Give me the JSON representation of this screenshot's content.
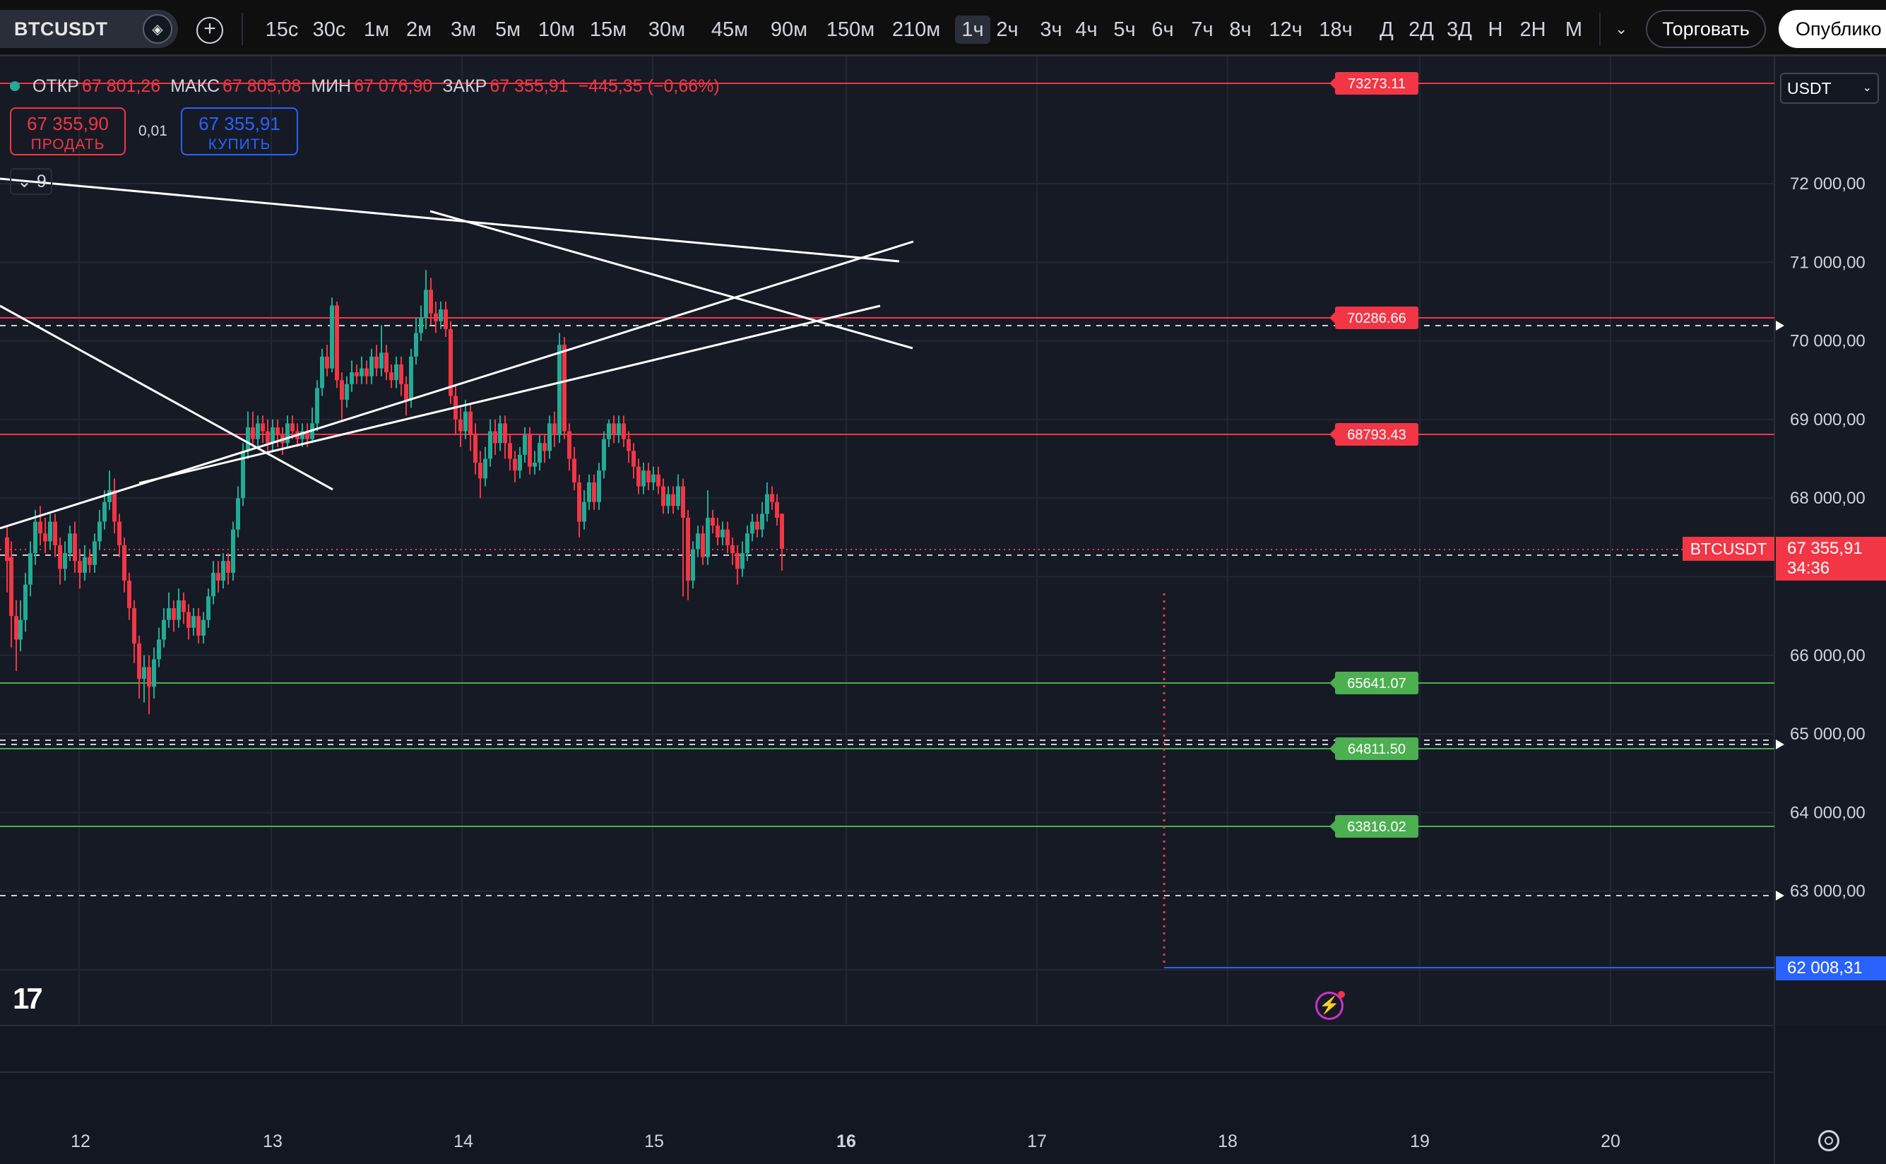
{
  "toolbar": {
    "symbol": "BTCUSDT",
    "timeframes": [
      "15с",
      "30с",
      "1м",
      "2м",
      "3м",
      "5м",
      "10м",
      "15м",
      "30м",
      "45м",
      "90м",
      "150м",
      "210м",
      "1ч",
      "2ч",
      "3ч",
      "4ч",
      "5ч",
      "6ч",
      "7ч",
      "8ч",
      "12ч",
      "18ч",
      "Д",
      "2Д",
      "3Д",
      "Н",
      "2Н",
      "М"
    ],
    "active_timeframe": "1ч",
    "trade_button": "Торговать",
    "publish_button": "Опублико"
  },
  "legend": {
    "open_label": "ОТКР",
    "open": "67 801,26",
    "high_label": "МАКС",
    "high": "67 805,08",
    "low_label": "МИН",
    "low": "67 076,90",
    "close_label": "ЗАКР",
    "close": "67 355,91",
    "change": "−445,35 (−0,66%)"
  },
  "trade": {
    "sell_price": "67 355,90",
    "sell_label": "ПРОДАТЬ",
    "spread": "0,01",
    "buy_price": "67 355,91",
    "buy_label": "КУПИТЬ"
  },
  "indicators_count": "9",
  "currency": "USDT",
  "price_scale": {
    "ticks": [
      "72 000,00",
      "71 000,00",
      "70 000,00",
      "69 000,00",
      "68 000,00",
      "66 000,00",
      "65 000,00",
      "64 000,00",
      "63 000,00"
    ],
    "current_symbol": "BTCUSDT",
    "current_price": "67 355,91",
    "countdown": "34:36",
    "low_marker": "62 008,31"
  },
  "time_axis": {
    "labels": [
      "12",
      "13",
      "14",
      "15",
      "16",
      "17",
      "18",
      "19",
      "20"
    ]
  },
  "levels": [
    {
      "price": 73273.11,
      "label": "73273.11",
      "color": "#f23645"
    },
    {
      "price": 70286.66,
      "label": "70286.66",
      "color": "#f23645"
    },
    {
      "price": 68793.43,
      "label": "68793.43",
      "color": "#f23645"
    },
    {
      "price": 65641.07,
      "label": "65641.07",
      "color": "#4caf50"
    },
    {
      "price": 64811.5,
      "label": "64811.50",
      "color": "#4caf50"
    },
    {
      "price": 63816.02,
      "label": "63816.02",
      "color": "#4caf50"
    }
  ],
  "colors": {
    "up": "#22ab94",
    "down": "#f23645",
    "background": "#161a25"
  }
}
